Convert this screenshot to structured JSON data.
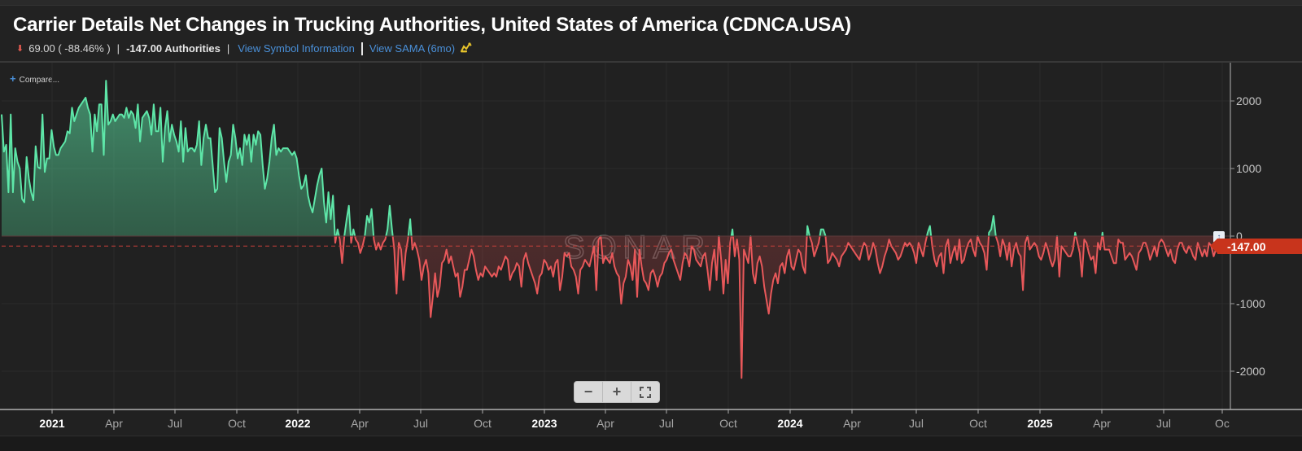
{
  "header": {
    "title": "Carrier Details Net Changes in Trucking Authorities, United States of America (CDNCA.USA)",
    "change_direction_icon": "down-arrow-icon",
    "change_value": "69.00 ( -88.46% )",
    "current_value": "-147.00 Authorities",
    "view_symbol_link": "View Symbol Information",
    "view_sama_link": "View SAMA (6mo)",
    "sama_icon": "chart-hand-icon"
  },
  "controls": {
    "compare_label": "Compare...",
    "zoom_out_label": "−",
    "zoom_in_label": "+",
    "fullscreen_icon": "fullscreen-icon"
  },
  "watermark": "SONAR",
  "price_tag": "-147.00",
  "colors": {
    "positive": "#5ee6a8",
    "negative": "#e8585a",
    "price_tag": "#c8341c",
    "link": "#4a90d9"
  },
  "chart_data": {
    "type": "area",
    "title": "Carrier Details Net Changes in Trucking Authorities, United States of America (CDNCA.USA)",
    "xlabel": "",
    "ylabel": "",
    "ylim": [
      -2500,
      2500
    ],
    "yticks": [
      2000,
      1000,
      0,
      -1000,
      -2000
    ],
    "ytick_labels": [
      "2000",
      "1000",
      "0",
      "-1000",
      "-2000"
    ],
    "xticks": [
      {
        "label": "2021",
        "major": true
      },
      {
        "label": "Apr",
        "major": false
      },
      {
        "label": "Jul",
        "major": false
      },
      {
        "label": "Oct",
        "major": false
      },
      {
        "label": "2022",
        "major": true
      },
      {
        "label": "Apr",
        "major": false
      },
      {
        "label": "Jul",
        "major": false
      },
      {
        "label": "Oct",
        "major": false
      },
      {
        "label": "2023",
        "major": true
      },
      {
        "label": "Apr",
        "major": false
      },
      {
        "label": "Jul",
        "major": false
      },
      {
        "label": "Oct",
        "major": false
      },
      {
        "label": "2024",
        "major": true
      },
      {
        "label": "Apr",
        "major": false
      },
      {
        "label": "Jul",
        "major": false
      },
      {
        "label": "Oct",
        "major": false
      },
      {
        "label": "2025",
        "major": true
      },
      {
        "label": "Apr",
        "major": false
      },
      {
        "label": "Jul",
        "major": false
      },
      {
        "label": "Oc",
        "major": false
      }
    ],
    "reference_line": -147,
    "last_value": -147,
    "grid": true,
    "x_unit": "weeks from 2020-10",
    "series": [
      {
        "name": "CDNCA.USA",
        "values": [
          1800,
          1250,
          1350,
          650,
          1800,
          650,
          1300,
          1100,
          1000,
          550,
          500,
          1170,
          850,
          650,
          530,
          1330,
          1020,
          1000,
          1800,
          950,
          1150,
          1150,
          1570,
          1320,
          1200,
          1200,
          1300,
          1350,
          1400,
          1550,
          1520,
          1900,
          1700,
          1800,
          1900,
          1950,
          2000,
          2050,
          1900,
          1800,
          1250,
          1800,
          1550,
          1950,
          1950,
          1200,
          2300,
          1650,
          1700,
          1800,
          1700,
          1750,
          1800,
          1800,
          1750,
          1900,
          1750,
          1850,
          1800,
          1600,
          1950,
          1400,
          1750,
          1800,
          1850,
          1750,
          1500,
          1950,
          1550,
          1550,
          1900,
          1100,
          1600,
          1850,
          1400,
          1650,
          1500,
          1400,
          1250,
          1700,
          1100,
          1600,
          1250,
          1300,
          1300,
          1250,
          1350,
          1700,
          1050,
          1450,
          1650,
          1450,
          1450,
          1050,
          650,
          700,
          1600,
          1450,
          1100,
          800,
          1100,
          1200,
          1650,
          1450,
          1150,
          1300,
          1050,
          1500,
          1350,
          1500,
          1100,
          1500,
          1350,
          1550,
          1500,
          1050,
          700,
          850,
          1100,
          1450,
          1650,
          1200,
          1300,
          1250,
          1300,
          1300,
          1300,
          1250,
          1200,
          1250,
          1150,
          900,
          700,
          750,
          900,
          600,
          450,
          350,
          550,
          750,
          900,
          1000,
          500,
          200,
          650,
          250,
          600,
          -100,
          100,
          -50,
          -400,
          0,
          250,
          450,
          -100,
          100,
          -50,
          -100,
          -250,
          -150,
          0,
          300,
          200,
          400,
          -50,
          -200,
          -100,
          -200,
          -100,
          -50,
          100,
          450,
          100,
          -200,
          -850,
          -100,
          -200,
          -650,
          -250,
          -50,
          250,
          -200,
          -100,
          -200,
          -350,
          -650,
          -450,
          -350,
          -550,
          -1200,
          -900,
          -550,
          -900,
          -750,
          -400,
          -350,
          -200,
          -400,
          -300,
          -450,
          -600,
          -550,
          -900,
          -750,
          -500,
          -500,
          -350,
          -200,
          -300,
          -500,
          -650,
          -550,
          -600,
          -450,
          -500,
          -550,
          -600,
          -550,
          -600,
          -450,
          -500,
          -400,
          -300,
          -350,
          -650,
          -550,
          -500,
          -400,
          -450,
          -750,
          -350,
          -250,
          -400,
          -500,
          -600,
          -700,
          -850,
          -600,
          -550,
          -350,
          -400,
          -500,
          -450,
          -600,
          -400,
          -350,
          -800,
          -600,
          -250,
          -300,
          -250,
          -450,
          -500,
          -600,
          -850,
          -500,
          -450,
          -350,
          -400,
          -450,
          -300,
          -150,
          -800,
          -50,
          0,
          -400,
          -300,
          -350,
          -400,
          -250,
          -450,
          -550,
          -600,
          -1000,
          -700,
          -600,
          -350,
          -450,
          -650,
          -200,
          -900,
          -200,
          -450,
          -650,
          -700,
          -800,
          -550,
          -500,
          -600,
          -750,
          -600,
          -550,
          -400,
          -350,
          -250,
          -200,
          -350,
          -450,
          -550,
          -650,
          -400,
          -250,
          -300,
          -450,
          -150,
          -200,
          -350,
          -400,
          -450,
          -300,
          -250,
          -500,
          -800,
          -400,
          -200,
          -650,
          0,
          -350,
          -850,
          -350,
          -700,
          -100,
          100,
          -300,
          -50,
          -350,
          -2100,
          -200,
          -300,
          -400,
          0,
          -550,
          -700,
          -400,
          -300,
          -450,
          -750,
          -950,
          -1150,
          -850,
          -650,
          -550,
          -700,
          -450,
          -400,
          -550,
          -300,
          -200,
          -450,
          -500,
          -350,
          -200,
          -250,
          -450,
          -550,
          150,
          0,
          -100,
          -300,
          -200,
          -100,
          100,
          100,
          0,
          -400,
          -350,
          -250,
          -300,
          -350,
          -450,
          -300,
          -250,
          -200,
          -100,
          -150,
          -200,
          -250,
          -300,
          -350,
          -200,
          -100,
          -150,
          -350,
          -250,
          -100,
          -200,
          -400,
          -550,
          -450,
          -300,
          -200,
          -50,
          -150,
          -200,
          -250,
          -350,
          -300,
          -200,
          -100,
          -150,
          -100,
          -150,
          -250,
          -400,
          -100,
          -200,
          -300,
          -100,
          50,
          150,
          -150,
          -350,
          -450,
          -300,
          -250,
          -550,
          -150,
          -50,
          -400,
          -250,
          -150,
          -350,
          -50,
          -400,
          -350,
          -200,
          -100,
          -50,
          -200,
          -300,
          0,
          -100,
          -150,
          -250,
          -500,
          50,
          100,
          300,
          0,
          -100,
          -300,
          -50,
          -150,
          -350,
          -100,
          -450,
          -200,
          -100,
          -250,
          -300,
          -800,
          -100,
          0,
          -200,
          -150,
          -100,
          -150,
          -300,
          -350,
          -250,
          -100,
          -200,
          -350,
          -450,
          -350,
          0,
          -600,
          -150,
          -200,
          -250,
          -300,
          -300,
          -200,
          50,
          -100,
          -250,
          -600,
          -50,
          -100,
          -250,
          -350,
          -300,
          -550,
          -100,
          -200,
          50,
          -200,
          -200,
          -200,
          -300,
          -400,
          -400,
          -50,
          -100,
          -100,
          -350,
          -300,
          -250,
          -300,
          -400,
          -500,
          -250,
          -200,
          -100,
          -100,
          -200,
          -350,
          -250,
          -150,
          -300,
          -100,
          -50,
          -100,
          -200,
          -300,
          -200,
          -350,
          -400,
          -200,
          -100,
          -100,
          -200,
          -250,
          -150,
          -200,
          -300,
          -350,
          -100,
          -200,
          -300,
          -200,
          -300,
          -100,
          -150,
          -300,
          -200,
          -147
        ]
      }
    ]
  }
}
